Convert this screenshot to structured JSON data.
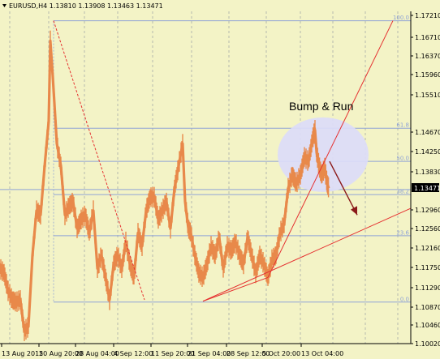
{
  "chart_data": {
    "type": "candlestick",
    "title": "EURUSD,H4 1.13810 1.13908 1.13463 1.13471",
    "symbol": "EURUSD",
    "timeframe": "H4",
    "ohlc_header": [
      "1.13810",
      "1.13908",
      "1.13463",
      "1.13471"
    ],
    "current_price": "1.13471",
    "ylim": [
      1.1002,
      1.1746
    ],
    "y_ticks": [
      "1.17210",
      "1.16710",
      "1.16370",
      "1.15960",
      "1.15510",
      "1.14670",
      "1.14250",
      "1.13830",
      "1.13471",
      "1.12960",
      "1.12560",
      "1.12160",
      "1.11750",
      "1.11290",
      "1.10870",
      "1.10460",
      "1.10020"
    ],
    "x_ticks": [
      "13 Aug 2015",
      "20 Aug 20:00",
      "28 Aug 04:00",
      "4 Sep 12:00",
      "11 Sep 20:00",
      "21 Sep 04:00",
      "28 Sep 12:00",
      "5 Oct 20:00",
      "13 Oct 04:00"
    ],
    "fibonacci_levels": [
      "100.0",
      "61.8",
      "50.0",
      "38.2",
      "23.6",
      "0.0"
    ],
    "annotation": "Bump & Run",
    "price_series": {
      "name": "",
      "x": [
        0,
        5,
        10,
        15,
        20,
        25,
        30,
        35,
        40,
        45,
        50,
        55,
        60,
        62,
        65,
        70,
        75,
        80,
        85,
        90,
        95,
        100,
        105,
        110,
        115,
        120,
        125,
        130,
        135,
        140,
        145,
        150,
        155,
        160,
        165,
        170,
        175,
        180,
        185,
        190,
        195,
        200,
        205,
        210,
        215,
        220,
        225,
        228,
        232,
        235,
        240,
        245,
        250,
        255,
        260,
        265,
        270,
        275,
        280,
        285,
        290,
        295,
        300,
        305,
        310,
        315,
        320,
        325,
        330,
        335,
        340,
        345,
        350,
        355,
        360,
        365,
        370,
        375,
        380,
        385,
        388,
        390,
        393,
        396,
        400,
        403,
        405
      ],
      "y": [
        1.117,
        1.116,
        1.112,
        1.11,
        1.1095,
        1.11,
        1.103,
        1.104,
        1.12,
        1.13,
        1.129,
        1.14,
        1.15,
        1.168,
        1.16,
        1.145,
        1.14,
        1.129,
        1.131,
        1.132,
        1.126,
        1.128,
        1.129,
        1.125,
        1.13,
        1.117,
        1.12,
        1.115,
        1.11,
        1.118,
        1.12,
        1.117,
        1.123,
        1.118,
        1.115,
        1.125,
        1.122,
        1.13,
        1.133,
        1.133,
        1.128,
        1.13,
        1.132,
        1.126,
        1.135,
        1.14,
        1.145,
        1.132,
        1.126,
        1.125,
        1.12,
        1.116,
        1.115,
        1.118,
        1.122,
        1.12,
        1.124,
        1.117,
        1.122,
        1.121,
        1.123,
        1.12,
        1.118,
        1.124,
        1.12,
        1.116,
        1.12,
        1.118,
        1.115,
        1.119,
        1.12,
        1.125,
        1.127,
        1.135,
        1.138,
        1.136,
        1.138,
        1.142,
        1.141,
        1.146,
        1.148,
        1.143,
        1.14,
        1.138,
        1.1395,
        1.136,
        1.135
      ]
    }
  }
}
